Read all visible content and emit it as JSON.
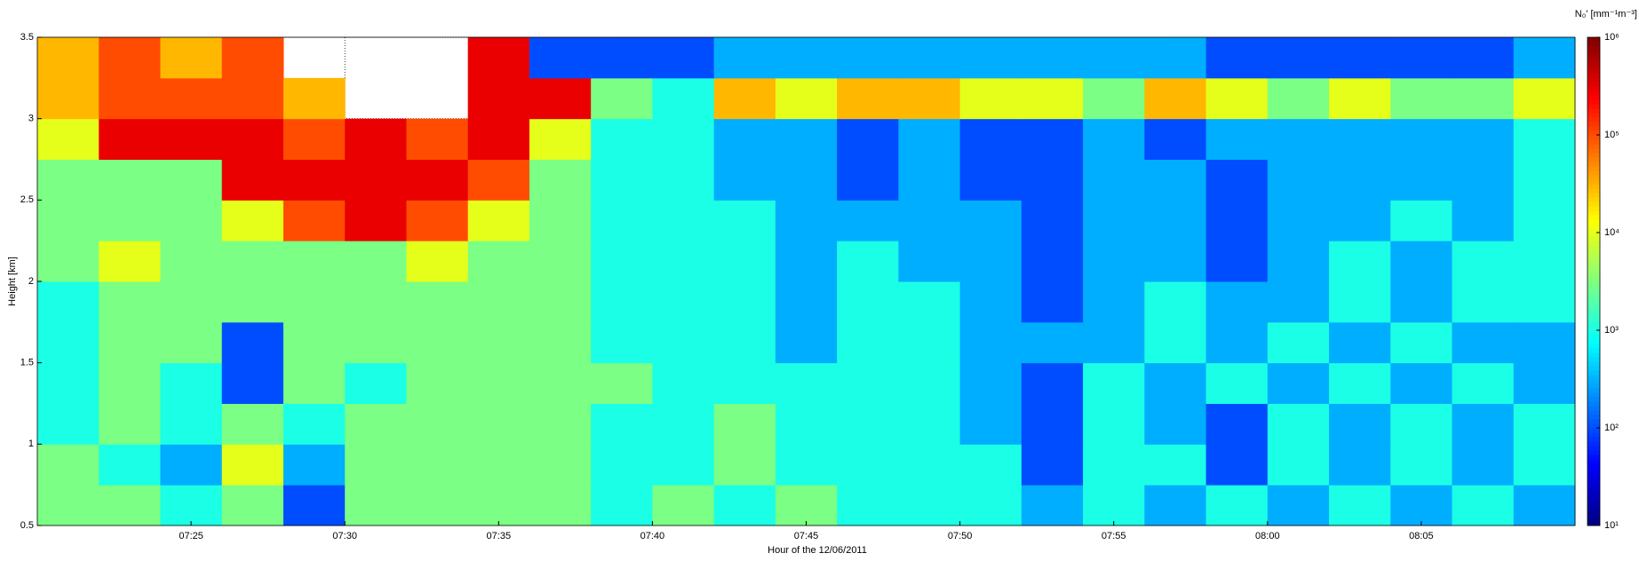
{
  "chart_data": {
    "type": "heatmap",
    "xlabel": "Hour of the 12/06/2011",
    "ylabel": "Height [km]",
    "colorbar_label": "N₀' [mm⁻¹m⁻³]",
    "colormap": "jet",
    "color_scale": "log",
    "x": [
      "07:20",
      "07:22",
      "07:24",
      "07:26",
      "07:28",
      "07:30",
      "07:32",
      "07:34",
      "07:36",
      "07:38",
      "07:40",
      "07:42",
      "07:44",
      "07:46",
      "07:48",
      "07:50",
      "07:52",
      "07:54",
      "07:56",
      "07:58",
      "08:00",
      "08:02",
      "08:04",
      "08:06",
      "08:08"
    ],
    "y": [
      0.5,
      0.75,
      1,
      1.25,
      1.5,
      1.75,
      2,
      2.25,
      2.5,
      2.75,
      3,
      3.25
    ],
    "z": [
      [
        3000,
        3000,
        1000,
        3000,
        100,
        3000,
        3000,
        3000,
        3000,
        1000,
        3000,
        1000,
        3000,
        1000,
        1000,
        1000,
        300,
        1000,
        300,
        1000,
        300,
        1000,
        300,
        1000,
        300
      ],
      [
        3000,
        1000,
        300,
        10000,
        300,
        3000,
        3000,
        3000,
        3000,
        1000,
        1000,
        3000,
        1000,
        1000,
        1000,
        1000,
        100,
        1000,
        1000,
        100,
        1000,
        300,
        1000,
        300,
        1000
      ],
      [
        1000,
        3000,
        1000,
        3000,
        1000,
        3000,
        3000,
        3000,
        3000,
        1000,
        1000,
        3000,
        1000,
        1000,
        1000,
        300,
        100,
        1000,
        300,
        100,
        1000,
        300,
        1000,
        300,
        1000
      ],
      [
        1000,
        3000,
        1000,
        100,
        3000,
        1000,
        3000,
        3000,
        3000,
        3000,
        1000,
        1000,
        1000,
        1000,
        1000,
        300,
        100,
        1000,
        300,
        1000,
        300,
        1000,
        300,
        1000,
        300
      ],
      [
        1000,
        3000,
        3000,
        100,
        3000,
        3000,
        3000,
        3000,
        3000,
        1000,
        1000,
        1000,
        300,
        1000,
        1000,
        300,
        300,
        300,
        1000,
        300,
        1000,
        300,
        1000,
        300,
        300
      ],
      [
        1000,
        3000,
        3000,
        3000,
        3000,
        3000,
        3000,
        3000,
        3000,
        1000,
        1000,
        1000,
        300,
        1000,
        1000,
        300,
        100,
        300,
        1000,
        300,
        300,
        1000,
        300,
        1000,
        1000
      ],
      [
        3000,
        10000,
        3000,
        3000,
        3000,
        3000,
        10000,
        3000,
        3000,
        1000,
        1000,
        1000,
        300,
        1000,
        300,
        300,
        100,
        300,
        300,
        100,
        300,
        1000,
        300,
        1000,
        1000
      ],
      [
        3000,
        3000,
        3000,
        10000,
        100000,
        300000,
        100000,
        10000,
        3000,
        1000,
        1000,
        1000,
        300,
        300,
        300,
        300,
        100,
        300,
        300,
        100,
        300,
        300,
        1000,
        300,
        1000
      ],
      [
        3000,
        3000,
        3000,
        300000,
        300000,
        300000,
        300000,
        100000,
        3000,
        1000,
        1000,
        300,
        300,
        100,
        300,
        100,
        100,
        300,
        300,
        100,
        300,
        300,
        300,
        300,
        1000
      ],
      [
        10000,
        300000,
        300000,
        300000,
        100000,
        300000,
        100000,
        300000,
        10000,
        1000,
        1000,
        300,
        300,
        100,
        300,
        100,
        100,
        300,
        100,
        300,
        300,
        300,
        300,
        300,
        1000
      ],
      [
        30000,
        100000,
        100000,
        100000,
        30000,
        null,
        null,
        300000,
        300000,
        3000,
        1000,
        30000,
        10000,
        30000,
        30000,
        10000,
        10000,
        3000,
        30000,
        10000,
        3000,
        10000,
        3000,
        3000,
        10000
      ],
      [
        30000,
        100000,
        30000,
        100000,
        null,
        null,
        null,
        300000,
        100,
        100,
        100,
        300,
        300,
        300,
        300,
        300,
        300,
        300,
        300,
        100,
        100,
        100,
        100,
        100,
        300
      ]
    ],
    "xlim": [
      "07:20",
      "08:10"
    ],
    "xticks": [
      "07:25",
      "07:30",
      "07:35",
      "07:40",
      "07:45",
      "07:50",
      "07:55",
      "08:00",
      "08:05"
    ],
    "ylim": [
      0.5,
      3.5
    ],
    "yticks": [
      0.5,
      1,
      1.5,
      2,
      2.5,
      3,
      3.5
    ],
    "clim": [
      10,
      1000000
    ],
    "cticks": [
      {
        "value": 10,
        "label": "10¹"
      },
      {
        "value": 100,
        "label": "10²"
      },
      {
        "value": 1000,
        "label": "10³"
      },
      {
        "value": 10000,
        "label": "10⁴"
      },
      {
        "value": 100000,
        "label": "10⁵"
      },
      {
        "value": 1000000,
        "label": "10⁶"
      }
    ],
    "grid": true
  }
}
